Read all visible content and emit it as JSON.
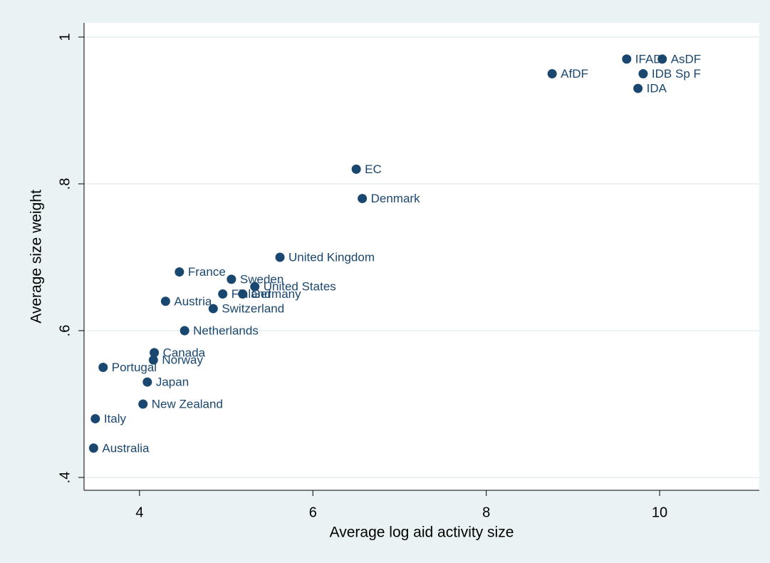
{
  "chart_data": {
    "type": "scatter",
    "x_label": "Average log aid activity size",
    "y_label": "Average size weight",
    "x": [
      9.62,
      10.03,
      8.76,
      9.81,
      9.75,
      6.5,
      6.57,
      5.62,
      4.46,
      5.06,
      5.33,
      4.96,
      5.19,
      4.3,
      4.85,
      4.52,
      4.17,
      4.16,
      3.58,
      4.09,
      4.04,
      3.49,
      3.47
    ],
    "values": [
      0.97,
      0.97,
      0.95,
      0.95,
      0.93,
      0.82,
      0.78,
      0.7,
      0.68,
      0.67,
      0.66,
      0.65,
      0.65,
      0.64,
      0.63,
      0.6,
      0.57,
      0.56,
      0.55,
      0.53,
      0.5,
      0.48,
      0.44
    ],
    "point_labels": [
      "IFAD",
      "AsDF",
      "AfDF",
      "IDB Sp F",
      "IDA",
      "EC",
      "Denmark",
      "United Kingdom",
      "France",
      "Sweden",
      "United States",
      "Finland",
      "Germany",
      "Austria",
      "Switzerland",
      "Netherlands",
      "Canada",
      "Norway",
      "Portugal",
      "Japan",
      "New Zealand",
      "Italy",
      "Australia"
    ],
    "color": "#1a476f",
    "xlim": [
      3.36,
      11.15
    ],
    "xticks": [
      4,
      6,
      8,
      10
    ],
    "ylim": [
      0.3825,
      1.0194
    ],
    "yticks": [
      {
        "value": 0.4,
        "label": ".4"
      },
      {
        "value": 0.6,
        "label": ".6"
      },
      {
        "value": 0.8,
        "label": ".8"
      },
      1
    ],
    "grid": true
  }
}
